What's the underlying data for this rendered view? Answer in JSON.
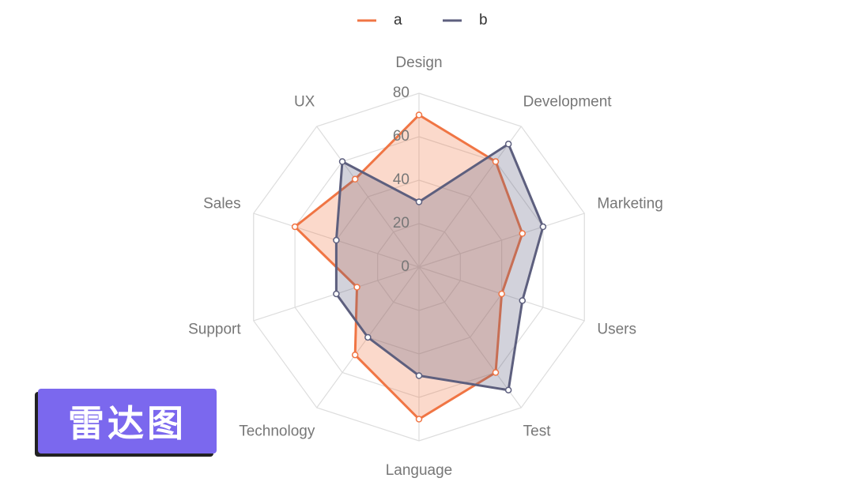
{
  "chart_data": {
    "type": "radar",
    "categories": [
      "Design",
      "Development",
      "Marketing",
      "Users",
      "Test",
      "Language",
      "Technology",
      "Support",
      "Sales",
      "UX"
    ],
    "series": [
      {
        "name": "a",
        "color": "#f07544",
        "values": [
          70,
          60,
          50,
          40,
          60,
          70,
          50,
          30,
          60,
          50
        ]
      },
      {
        "name": "b",
        "color": "#5d5f7e",
        "values": [
          30,
          70,
          60,
          50,
          70,
          50,
          40,
          40,
          40,
          60
        ]
      }
    ],
    "rlim": [
      0,
      80
    ],
    "rticks": [
      0,
      20,
      40,
      60,
      80
    ],
    "grid": true
  },
  "badge": "雷达图"
}
